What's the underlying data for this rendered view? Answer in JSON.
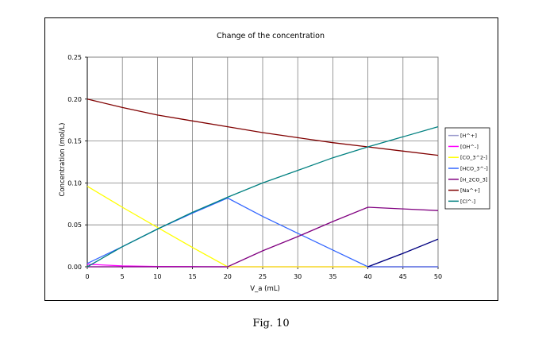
{
  "caption": "Fig. 10",
  "chart_data": {
    "type": "line",
    "title": "Change of the concentration",
    "xlabel": "V_a (mL)",
    "ylabel": "Concentration  (mol/L)",
    "xlim": [
      0,
      50
    ],
    "ylim": [
      0,
      0.25
    ],
    "xticks": [
      "0",
      "5",
      "10",
      "15",
      "20",
      "25",
      "30",
      "35",
      "40",
      "45",
      "50"
    ],
    "yticks": [
      "0.00",
      "0.05",
      "0.10",
      "0.15",
      "0.20",
      "0.25"
    ],
    "grid": true,
    "legend_position": "right",
    "x": [
      0,
      5,
      10,
      15,
      20,
      25,
      30,
      35,
      40,
      45,
      50
    ],
    "series": [
      {
        "name": "[H^+]",
        "color": "#9999cc",
        "values": [
          0,
          0,
          0,
          0,
          0,
          0,
          0,
          0,
          0,
          0.016,
          0.033
        ]
      },
      {
        "name": "[OH^-]",
        "color": "#ff00ff",
        "values": [
          0.003,
          0.001,
          0.0004,
          0.0002,
          0,
          0,
          0,
          0,
          0,
          0,
          0
        ]
      },
      {
        "name": "[CO_3^2-]",
        "color": "#ffff00",
        "values": [
          0.096,
          0.071,
          0.047,
          0.023,
          0,
          0,
          0,
          0,
          0,
          0,
          0
        ]
      },
      {
        "name": "[HCO_3^-]",
        "color": "#3366ff",
        "values": [
          0.004,
          0.024,
          0.045,
          0.064,
          0.082,
          0.06,
          0.04,
          0.02,
          0,
          0,
          0
        ]
      },
      {
        "name": "[H_2CO_3]",
        "color": "#800080",
        "values": [
          0,
          0,
          0,
          0,
          0,
          0.019,
          0.036,
          0.054,
          0.071,
          0.069,
          0.067
        ]
      },
      {
        "name": "[Na^+]",
        "color": "#800000",
        "values": [
          0.2,
          0.19,
          0.181,
          0.174,
          0.167,
          0.16,
          0.154,
          0.148,
          0.143,
          0.138,
          0.133
        ]
      },
      {
        "name": "[Cl^-]",
        "color": "#008080",
        "values": [
          0,
          0.024,
          0.045,
          0.065,
          0.083,
          0.1,
          0.115,
          0.13,
          0.143,
          0.155,
          0.167
        ]
      }
    ],
    "highlight": {
      "series": "[H^+]",
      "color": "#000080",
      "from_x": 40
    }
  }
}
